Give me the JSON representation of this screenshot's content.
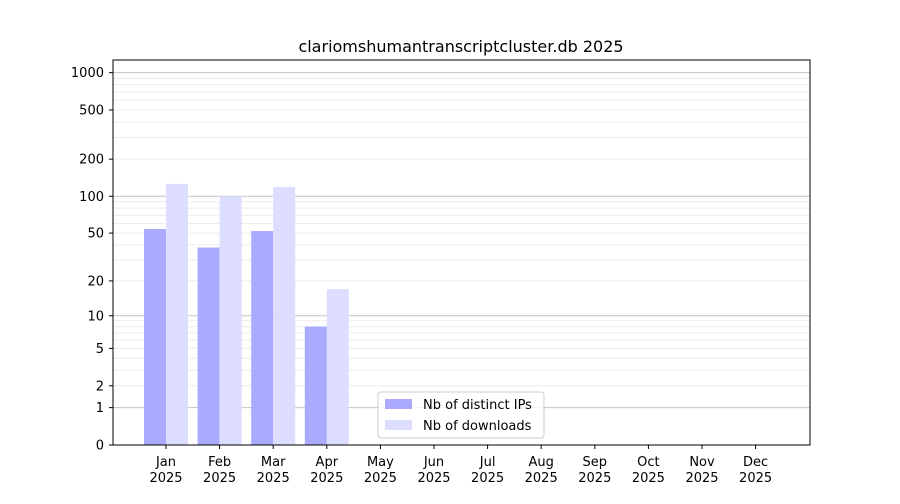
{
  "chart_data": {
    "type": "bar",
    "title": "clariomshumantranscriptcluster.db 2025",
    "xlabel": "",
    "ylabel": "",
    "yscale": "symlog (log10(1+y))",
    "ylim": [
      0,
      1300
    ],
    "yticks": [
      0,
      1,
      2,
      5,
      10,
      20,
      50,
      100,
      200,
      500,
      1000
    ],
    "categories": [
      "Jan\n2025",
      "Feb\n2025",
      "Mar\n2025",
      "Apr\n2025",
      "May\n2025",
      "Jun\n2025",
      "Jul\n2025",
      "Aug\n2025",
      "Sep\n2025",
      "Oct\n2025",
      "Nov\n2025",
      "Dec\n2025"
    ],
    "category_lines": [
      [
        "Jan",
        "2025"
      ],
      [
        "Feb",
        "2025"
      ],
      [
        "Mar",
        "2025"
      ],
      [
        "Apr",
        "2025"
      ],
      [
        "May",
        "2025"
      ],
      [
        "Jun",
        "2025"
      ],
      [
        "Jul",
        "2025"
      ],
      [
        "Aug",
        "2025"
      ],
      [
        "Sep",
        "2025"
      ],
      [
        "Oct",
        "2025"
      ],
      [
        "Nov",
        "2025"
      ],
      [
        "Dec",
        "2025"
      ]
    ],
    "series": [
      {
        "name": "Nb of distinct IPs",
        "color": "#aaaaff",
        "values": [
          54,
          38,
          52,
          8,
          0,
          0,
          0,
          0,
          0,
          0,
          0,
          0
        ]
      },
      {
        "name": "Nb of downloads",
        "color": "#ddddff",
        "values": [
          126,
          100,
          119,
          17,
          0,
          0,
          0,
          0,
          0,
          0,
          0,
          0
        ]
      }
    ],
    "grid": true,
    "legend": "bottom-center"
  }
}
